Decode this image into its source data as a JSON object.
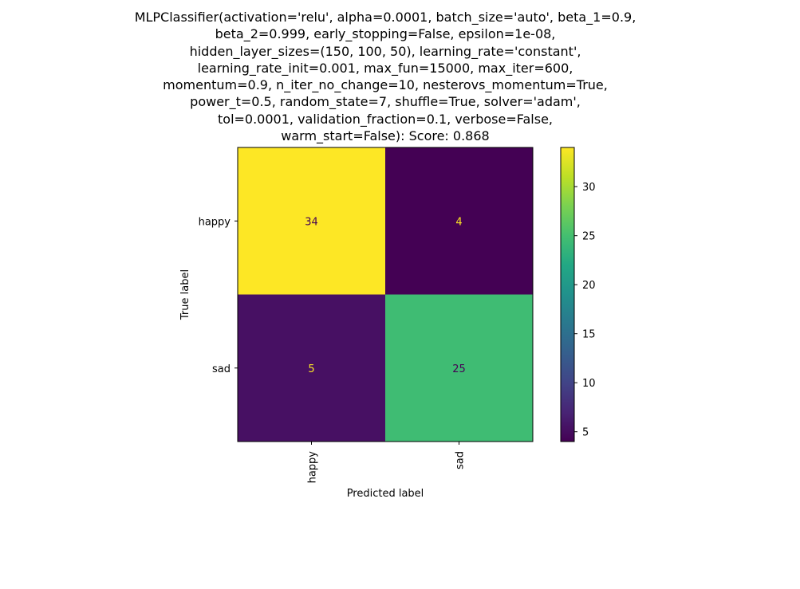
{
  "chart_data": {
    "type": "heatmap",
    "title_lines": [
      "MLPClassifier(activation='relu', alpha=0.0001, batch_size='auto', beta_1=0.9,",
      "beta_2=0.999, early_stopping=False, epsilon=1e-08,",
      "hidden_layer_sizes=(150, 100, 50), learning_rate='constant',",
      "learning_rate_init=0.001, max_fun=15000, max_iter=600,",
      "momentum=0.9, n_iter_no_change=10, nesterovs_momentum=True,",
      "power_t=0.5, random_state=7, shuffle=True, solver='adam',",
      "tol=0.0001, validation_fraction=0.1, verbose=False,",
      "warm_start=False): Score: 0.868"
    ],
    "xlabel": "Predicted label",
    "ylabel": "True label",
    "x_categories": [
      "happy",
      "sad"
    ],
    "y_categories": [
      "happy",
      "sad"
    ],
    "matrix": [
      [
        34,
        4
      ],
      [
        5,
        25
      ]
    ],
    "colormap": "viridis",
    "colorbar": {
      "min": 4,
      "max": 34,
      "ticks": [
        5,
        10,
        15,
        20,
        25,
        30
      ]
    },
    "colors": {
      "34": "#fde725",
      "4": "#440154",
      "5": "#471063",
      "25": "#3fbc73",
      "text_on_dark": "#fde725",
      "text_on_light": "#440154"
    }
  }
}
